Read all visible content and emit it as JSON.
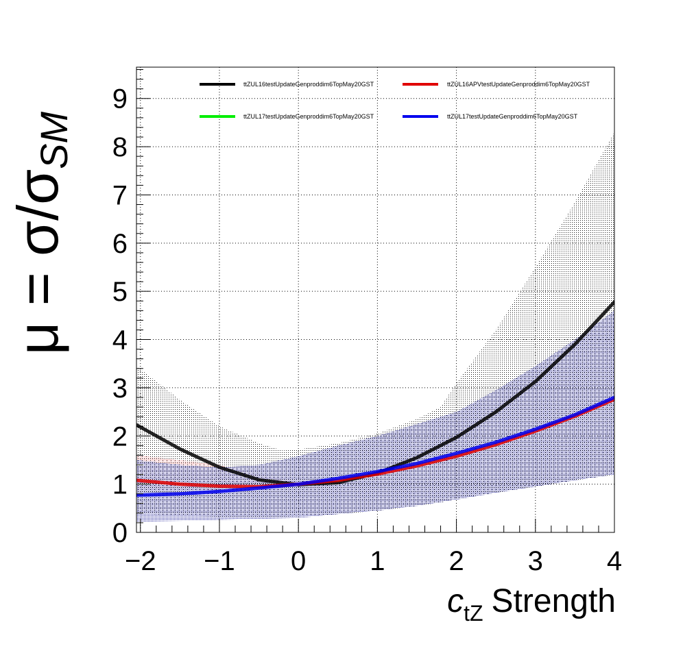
{
  "chart_data": {
    "type": "line",
    "xlabel": {
      "symbol": "c",
      "subscript": "tZ",
      "text": "Strength"
    },
    "ylabel": {
      "prefix": "μ = σ/σ",
      "subscript": "SM"
    },
    "xlim": [
      -2.05,
      4.0
    ],
    "ylim": [
      0,
      9.65
    ],
    "x_ticks": [
      -2,
      -1,
      0,
      1,
      2,
      3,
      4
    ],
    "x_tick_labels": [
      "−2",
      "−1",
      "0",
      "1",
      "2",
      "3",
      "4"
    ],
    "y_ticks": [
      0,
      1,
      2,
      3,
      4,
      5,
      6,
      7,
      8,
      9
    ],
    "y_tick_labels": [
      "0",
      "1",
      "2",
      "3",
      "4",
      "5",
      "6",
      "7",
      "8",
      "9"
    ],
    "grid": true,
    "legend_placement": "top",
    "series": [
      {
        "name": "ttZUL16testUpdateGenproddim6TopMay20GST",
        "color": "#000000",
        "x": [
          -2.05,
          -1.5,
          -1.0,
          -0.5,
          0.0,
          0.5,
          1.0,
          1.5,
          2.0,
          2.5,
          3.0,
          3.5,
          4.0
        ],
        "y": [
          2.23,
          1.73,
          1.35,
          1.09,
          0.99,
          1.03,
          1.23,
          1.55,
          1.97,
          2.5,
          3.13,
          3.9,
          4.78
        ]
      },
      {
        "name": "ttZUL16APVtestUpdateGenproddim6TopMay20GST",
        "color": "#e00000",
        "x": [
          -2.05,
          -1.5,
          -1.0,
          -0.5,
          0.0,
          0.5,
          1.0,
          1.5,
          2.0,
          2.5,
          3.0,
          3.5,
          4.0
        ],
        "y": [
          1.08,
          1.0,
          0.96,
          0.95,
          1.0,
          1.08,
          1.21,
          1.38,
          1.58,
          1.82,
          2.1,
          2.41,
          2.76
        ]
      },
      {
        "name": "ttZUL17testUpdateGenproddim6TopMay20GST",
        "color": "#00ee00",
        "x": [],
        "y": []
      },
      {
        "name": "ttZUL17testUpdateGenproddim6TopMay20GST",
        "color": "#0000ee",
        "x": [
          -2.05,
          -1.5,
          -1.0,
          -0.5,
          0.0,
          0.5,
          1.0,
          1.5,
          2.0,
          2.5,
          3.0,
          3.5,
          4.0
        ],
        "y": [
          0.77,
          0.8,
          0.85,
          0.92,
          1.0,
          1.12,
          1.26,
          1.43,
          1.64,
          1.87,
          2.14,
          2.44,
          2.8
        ]
      }
    ],
    "bands": [
      {
        "color": "#000000",
        "x": [
          -2.05,
          -1.5,
          -1.0,
          -0.5,
          -0.2,
          0.0,
          0.5,
          1.0,
          1.5,
          1.8,
          2.0,
          2.5,
          3.0,
          3.5,
          4.0
        ],
        "upper": [
          3.45,
          2.75,
          2.2,
          1.85,
          1.7,
          1.72,
          1.85,
          2.05,
          2.35,
          2.6,
          3.1,
          4.2,
          5.5,
          6.85,
          8.3
        ],
        "lower": [
          0.4,
          0.35,
          0.33,
          0.33,
          0.33,
          0.34,
          0.38,
          0.45,
          0.55,
          0.62,
          0.7,
          0.82,
          0.95,
          1.08,
          1.2
        ]
      },
      {
        "color": "#e00000",
        "x": [
          -2.05,
          -1.5,
          -1.0,
          -0.5,
          0.0
        ],
        "upper": [
          1.6,
          1.5,
          1.4,
          1.2,
          1.05
        ],
        "lower": [
          0.85,
          0.9,
          0.9,
          0.92,
          0.98
        ]
      },
      {
        "color": "#0000ee",
        "x": [
          -2.05,
          -1.5,
          -1.0,
          -0.5,
          0.0,
          0.5,
          1.0,
          1.5,
          2.0,
          2.5,
          3.0,
          3.5,
          4.0
        ],
        "upper": [
          1.5,
          1.4,
          1.35,
          1.4,
          1.58,
          1.8,
          2.0,
          2.25,
          2.5,
          2.95,
          3.45,
          4.0,
          4.6
        ],
        "lower": [
          0.22,
          0.24,
          0.26,
          0.28,
          0.3,
          0.38,
          0.45,
          0.55,
          0.68,
          0.82,
          0.95,
          1.08,
          1.2
        ]
      }
    ]
  }
}
